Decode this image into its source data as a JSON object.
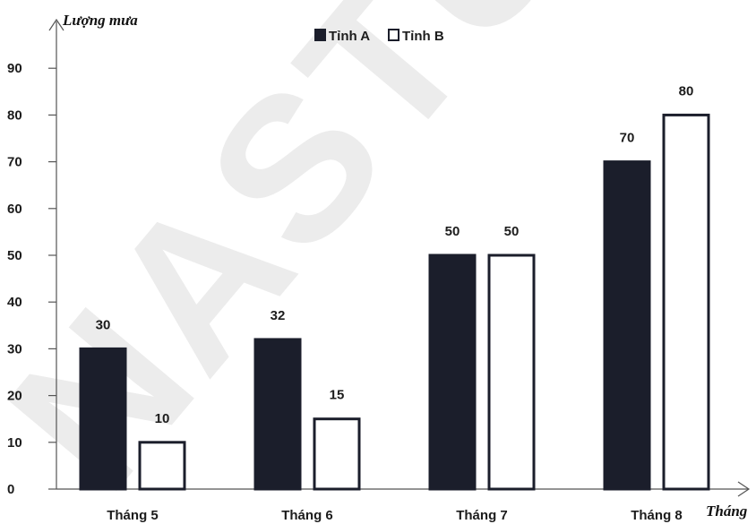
{
  "chart_data": {
    "type": "bar",
    "ylabel": "Lượng mưa",
    "xlabel": "Tháng",
    "categories": [
      "Tháng 5",
      "Tháng 6",
      "Tháng 7",
      "Tháng 8"
    ],
    "series": [
      {
        "name": "Tỉnh A",
        "values": [
          30,
          32,
          50,
          70
        ],
        "color": "#1b1e2b",
        "fill": "#1b1e2b"
      },
      {
        "name": "Tỉnh B",
        "values": [
          10,
          15,
          50,
          80
        ],
        "color": "#1b1e2b",
        "fill": "#ffffff"
      }
    ],
    "yticks": [
      0,
      10,
      20,
      30,
      40,
      50,
      60,
      70,
      80,
      90
    ],
    "ylim": [
      0,
      90
    ],
    "legend": "top-center",
    "grid": false
  },
  "watermark": "NASTUD"
}
